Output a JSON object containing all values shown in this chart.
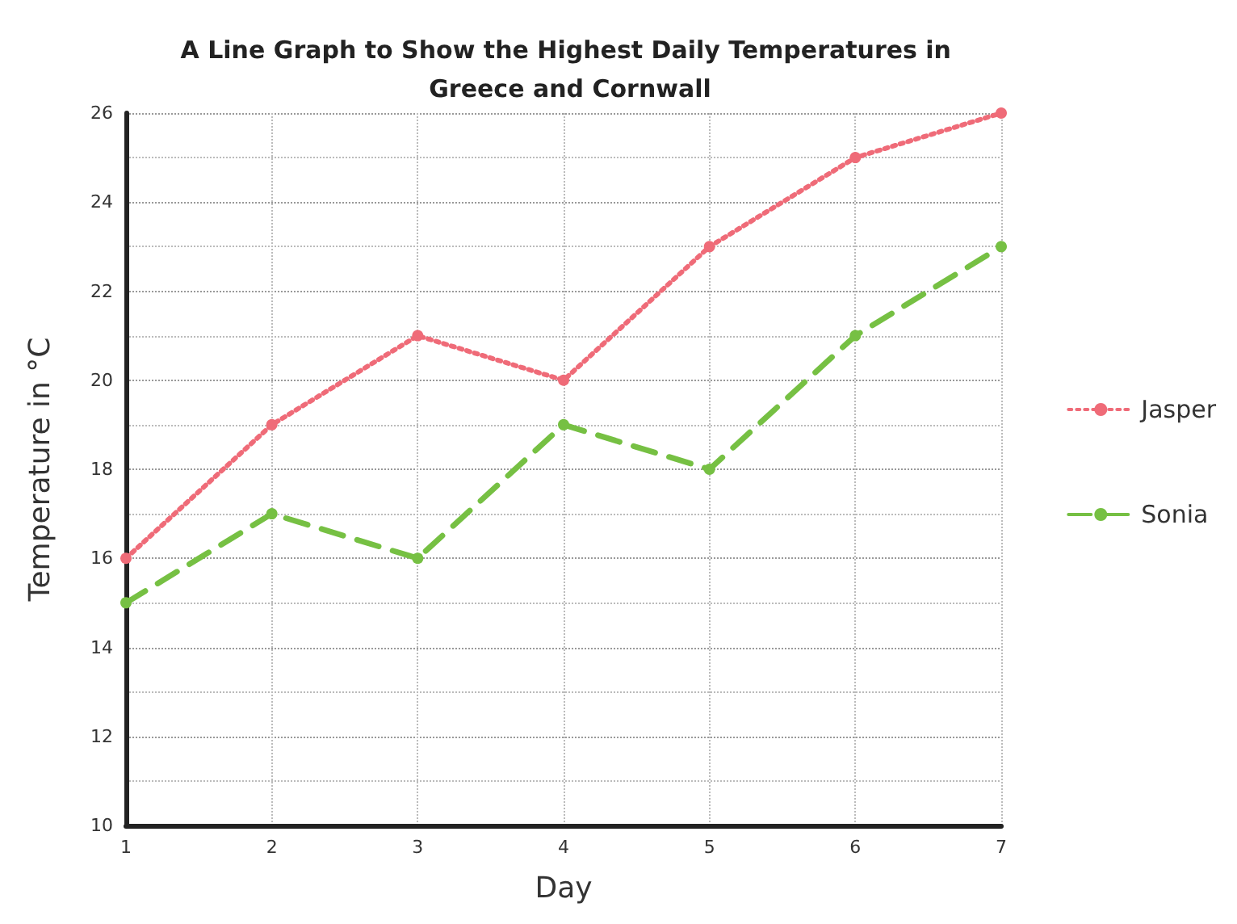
{
  "chart_data": {
    "type": "line",
    "title": "A Line Graph to Show the Highest Daily Temperatures in Greece and Cornwall",
    "xlabel": "Day",
    "ylabel": "Temperature in °C",
    "x": [
      1,
      2,
      3,
      4,
      5,
      6,
      7
    ],
    "series": [
      {
        "name": "Jasper",
        "color": "#ef6b78",
        "line_style": "dotted",
        "values": [
          16,
          19,
          21,
          20,
          23,
          25,
          26
        ]
      },
      {
        "name": "Sonia",
        "color": "#76c043",
        "line_style": "dashed",
        "values": [
          15,
          17,
          16,
          19,
          18,
          21,
          23
        ]
      }
    ],
    "xlim": [
      1,
      7
    ],
    "xticks": [
      1,
      2,
      3,
      4,
      5,
      6,
      7
    ],
    "ylim": [
      10,
      26
    ],
    "yticks": [
      10,
      12,
      14,
      16,
      18,
      20,
      22,
      24,
      26
    ],
    "grid": true,
    "legend": "right",
    "marker": "circle"
  }
}
